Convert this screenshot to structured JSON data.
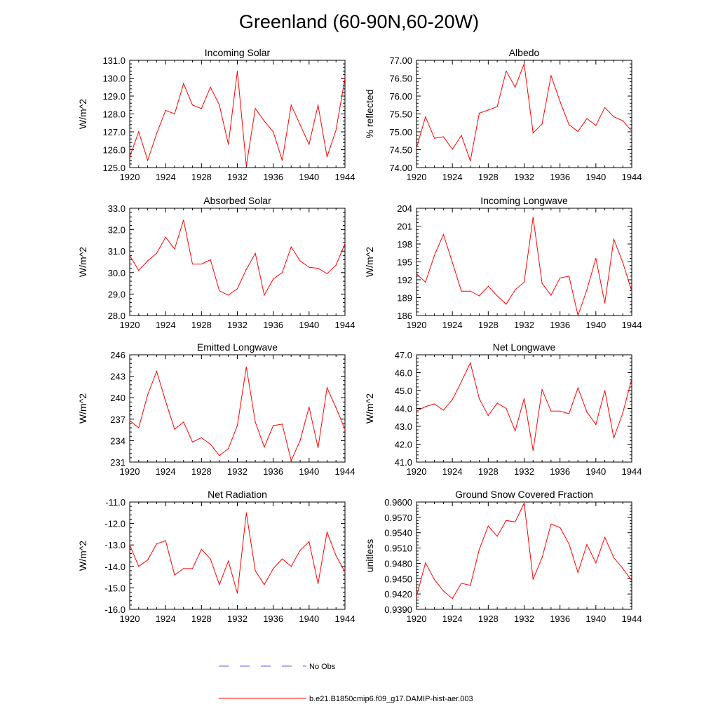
{
  "page": {
    "title": "Greenland (60-90N,60-20W)"
  },
  "legend": {
    "items": [
      {
        "label": "No Obs",
        "color": "#5b5bd6",
        "style": "dashed"
      },
      {
        "label": "b.e21.B1850cmip6.f09_g17.DAMIP-hist-aer.003",
        "color": "#ff0000",
        "style": "solid"
      }
    ]
  },
  "chart_data": [
    {
      "type": "line",
      "title": "Incoming Solar",
      "xlabel": "",
      "ylabel": "W/m^2",
      "xlim": [
        1920,
        1944
      ],
      "ylim": [
        125.0,
        131.0
      ],
      "xticks": [
        1920,
        1924,
        1928,
        1932,
        1936,
        1940,
        1944
      ],
      "yticks": [
        125.0,
        126.0,
        127.0,
        128.0,
        129.0,
        130.0,
        131.0
      ],
      "ytick_labels": [
        "125.0",
        "126.0",
        "127.0",
        "128.0",
        "129.0",
        "130.0",
        "131.0"
      ],
      "series": [
        {
          "name": "b.e21.B1850cmip6.f09_g17.DAMIP-hist-aer.003",
          "x": [
            1920,
            1921,
            1922,
            1923,
            1924,
            1925,
            1926,
            1927,
            1928,
            1929,
            1930,
            1931,
            1932,
            1933,
            1934,
            1935,
            1936,
            1937,
            1938,
            1939,
            1940,
            1941,
            1942,
            1943,
            1944
          ],
          "y": [
            125.6,
            127.0,
            125.4,
            126.9,
            128.2,
            128.0,
            129.7,
            128.5,
            128.3,
            129.5,
            128.5,
            126.3,
            130.4,
            125.1,
            128.3,
            127.6,
            127.0,
            125.4,
            128.5,
            127.4,
            126.3,
            128.5,
            125.6,
            127.1,
            130.0
          ]
        }
      ]
    },
    {
      "type": "line",
      "title": "Albedo",
      "xlabel": "",
      "ylabel": "% reflected",
      "xlim": [
        1920,
        1944
      ],
      "ylim": [
        74.0,
        77.0
      ],
      "xticks": [
        1920,
        1924,
        1928,
        1932,
        1936,
        1940,
        1944
      ],
      "yticks": [
        74.0,
        74.5,
        75.0,
        75.5,
        76.0,
        76.5,
        77.0
      ],
      "ytick_labels": [
        "74.00",
        "74.50",
        "75.00",
        "75.50",
        "76.00",
        "76.50",
        "77.00"
      ],
      "series": [
        {
          "name": "b.e21.B1850cmip6.f09_g17.DAMIP-hist-aer.003",
          "x": [
            1920,
            1921,
            1922,
            1923,
            1924,
            1925,
            1926,
            1927,
            1928,
            1929,
            1930,
            1931,
            1932,
            1933,
            1934,
            1935,
            1936,
            1937,
            1938,
            1939,
            1940,
            1941,
            1942,
            1943,
            1944
          ],
          "y": [
            74.55,
            75.42,
            74.82,
            74.86,
            74.51,
            74.9,
            74.19,
            75.52,
            75.61,
            75.7,
            76.7,
            76.25,
            76.9,
            74.97,
            75.22,
            76.57,
            75.85,
            75.2,
            75.01,
            75.37,
            75.18,
            75.68,
            75.42,
            75.31,
            75.02
          ]
        }
      ]
    },
    {
      "type": "line",
      "title": "Absorbed Solar",
      "xlabel": "",
      "ylabel": "W/m^2",
      "xlim": [
        1920,
        1944
      ],
      "ylim": [
        28.0,
        33.0
      ],
      "xticks": [
        1920,
        1924,
        1928,
        1932,
        1936,
        1940,
        1944
      ],
      "yticks": [
        28.0,
        29.0,
        30.0,
        31.0,
        32.0,
        33.0
      ],
      "ytick_labels": [
        "28.0",
        "29.0",
        "30.0",
        "31.0",
        "32.0",
        "33.0"
      ],
      "series": [
        {
          "name": "b.e21.B1850cmip6.f09_g17.DAMIP-hist-aer.003",
          "x": [
            1920,
            1921,
            1922,
            1923,
            1924,
            1925,
            1926,
            1927,
            1928,
            1929,
            1930,
            1931,
            1932,
            1933,
            1934,
            1935,
            1936,
            1937,
            1938,
            1939,
            1940,
            1941,
            1942,
            1943,
            1944
          ],
          "y": [
            30.8,
            30.1,
            30.55,
            30.9,
            31.65,
            31.1,
            32.45,
            30.4,
            30.4,
            30.6,
            29.15,
            28.95,
            29.25,
            30.15,
            30.9,
            28.95,
            29.7,
            30.0,
            31.2,
            30.55,
            30.25,
            30.2,
            29.95,
            30.35,
            31.35
          ]
        }
      ]
    },
    {
      "type": "line",
      "title": "Incoming Longwave",
      "xlabel": "",
      "ylabel": "W/m^2",
      "xlim": [
        1920,
        1944
      ],
      "ylim": [
        186,
        204
      ],
      "xticks": [
        1920,
        1924,
        1928,
        1932,
        1936,
        1940,
        1944
      ],
      "yticks": [
        186,
        189,
        192,
        195,
        198,
        201,
        204
      ],
      "ytick_labels": [
        "186",
        "189",
        "192",
        "195",
        "198",
        "201",
        "204"
      ],
      "series": [
        {
          "name": "b.e21.B1850cmip6.f09_g17.DAMIP-hist-aer.003",
          "x": [
            1920,
            1921,
            1922,
            1923,
            1924,
            1925,
            1926,
            1927,
            1928,
            1929,
            1930,
            1931,
            1932,
            1933,
            1934,
            1935,
            1936,
            1937,
            1938,
            1939,
            1940,
            1941,
            1942,
            1943,
            1944
          ],
          "y": [
            193.0,
            191.6,
            196.1,
            199.6,
            194.9,
            190.1,
            190.1,
            189.3,
            190.9,
            189.3,
            187.9,
            190.3,
            191.6,
            202.5,
            191.4,
            189.4,
            192.3,
            192.6,
            186.0,
            190.3,
            195.6,
            188.1,
            198.8,
            194.9,
            190.1
          ]
        }
      ]
    },
    {
      "type": "line",
      "title": "Emitted Longwave",
      "xlabel": "",
      "ylabel": "W/m^2",
      "xlim": [
        1920,
        1944
      ],
      "ylim": [
        231,
        246
      ],
      "xticks": [
        1920,
        1924,
        1928,
        1932,
        1936,
        1940,
        1944
      ],
      "yticks": [
        231,
        234,
        237,
        240,
        243,
        246
      ],
      "ytick_labels": [
        "231",
        "234",
        "237",
        "240",
        "243",
        "246"
      ],
      "series": [
        {
          "name": "b.e21.B1850cmip6.f09_g17.DAMIP-hist-aer.003",
          "x": [
            1920,
            1921,
            1922,
            1923,
            1924,
            1925,
            1926,
            1927,
            1928,
            1929,
            1930,
            1931,
            1932,
            1933,
            1934,
            1935,
            1936,
            1937,
            1938,
            1939,
            1940,
            1941,
            1942,
            1943,
            1944
          ],
          "y": [
            236.8,
            235.8,
            240.4,
            243.7,
            239.5,
            235.6,
            236.6,
            233.8,
            234.4,
            233.5,
            231.9,
            232.9,
            236.1,
            244.3,
            236.6,
            233.1,
            236.1,
            236.3,
            231.2,
            234.0,
            238.7,
            233.0,
            241.4,
            238.6,
            235.6
          ]
        }
      ]
    },
    {
      "type": "line",
      "title": "Net Longwave",
      "xlabel": "",
      "ylabel": "W/m^2",
      "xlim": [
        1920,
        1944
      ],
      "ylim": [
        41.0,
        47.0
      ],
      "xticks": [
        1920,
        1924,
        1928,
        1932,
        1936,
        1940,
        1944
      ],
      "yticks": [
        41.0,
        42.0,
        43.0,
        44.0,
        45.0,
        46.0,
        47.0
      ],
      "ytick_labels": [
        "41.0",
        "42.0",
        "43.0",
        "44.0",
        "45.0",
        "46.0",
        "47.0"
      ],
      "series": [
        {
          "name": "b.e21.B1850cmip6.f09_g17.DAMIP-hist-aer.003",
          "x": [
            1920,
            1921,
            1922,
            1923,
            1924,
            1925,
            1926,
            1927,
            1928,
            1929,
            1930,
            1931,
            1932,
            1933,
            1934,
            1935,
            1936,
            1937,
            1938,
            1939,
            1940,
            1941,
            1942,
            1943,
            1944
          ],
          "y": [
            43.85,
            44.1,
            44.25,
            43.9,
            44.5,
            45.5,
            46.55,
            44.55,
            43.6,
            44.3,
            44.0,
            42.75,
            44.55,
            41.65,
            45.05,
            43.85,
            43.85,
            43.7,
            45.15,
            43.8,
            43.1,
            45.0,
            42.35,
            43.75,
            45.65
          ]
        }
      ]
    },
    {
      "type": "line",
      "title": "Net Radiation",
      "xlabel": "",
      "ylabel": "W/m^2",
      "xlim": [
        1920,
        1944
      ],
      "ylim": [
        -16.0,
        -11.0
      ],
      "xticks": [
        1920,
        1924,
        1928,
        1932,
        1936,
        1940,
        1944
      ],
      "yticks": [
        -16.0,
        -15.0,
        -14.0,
        -13.0,
        -12.0,
        -11.0
      ],
      "ytick_labels": [
        "-16.0",
        "-15.0",
        "-14.0",
        "-13.0",
        "-12.0",
        "-11.0"
      ],
      "series": [
        {
          "name": "b.e21.B1850cmip6.f09_g17.DAMIP-hist-aer.003",
          "x": [
            1920,
            1921,
            1922,
            1923,
            1924,
            1925,
            1926,
            1927,
            1928,
            1929,
            1930,
            1931,
            1932,
            1933,
            1934,
            1935,
            1936,
            1937,
            1938,
            1939,
            1940,
            1941,
            1942,
            1943,
            1944
          ],
          "y": [
            -13.0,
            -14.0,
            -13.7,
            -12.95,
            -12.8,
            -14.4,
            -14.1,
            -14.1,
            -13.2,
            -13.65,
            -14.85,
            -13.75,
            -15.25,
            -11.5,
            -14.2,
            -14.85,
            -14.1,
            -13.65,
            -14.0,
            -13.25,
            -12.85,
            -14.8,
            -12.4,
            -13.5,
            -14.25
          ]
        }
      ]
    },
    {
      "type": "line",
      "title": "Ground Snow Covered Fraction",
      "xlabel": "",
      "ylabel": "unitless",
      "xlim": [
        1920,
        1944
      ],
      "ylim": [
        0.939,
        0.96
      ],
      "xticks": [
        1920,
        1924,
        1928,
        1932,
        1936,
        1940,
        1944
      ],
      "yticks": [
        0.939,
        0.942,
        0.945,
        0.948,
        0.951,
        0.954,
        0.957,
        0.96
      ],
      "ytick_labels": [
        "0.9390",
        "0.9420",
        "0.9450",
        "0.9480",
        "0.9510",
        "0.9540",
        "0.9570",
        "0.9600"
      ],
      "series": [
        {
          "name": "b.e21.B1850cmip6.f09_g17.DAMIP-hist-aer.003",
          "x": [
            1920,
            1921,
            1922,
            1923,
            1924,
            1925,
            1926,
            1927,
            1928,
            1929,
            1930,
            1931,
            1932,
            1933,
            1934,
            1935,
            1936,
            1937,
            1938,
            1939,
            1940,
            1941,
            1942,
            1943,
            1944
          ],
          "y": [
            0.9415,
            0.9481,
            0.9448,
            0.9426,
            0.9411,
            0.9441,
            0.9437,
            0.9507,
            0.9553,
            0.9533,
            0.9564,
            0.9561,
            0.9598,
            0.9449,
            0.9491,
            0.9557,
            0.955,
            0.9518,
            0.9462,
            0.9517,
            0.9481,
            0.9531,
            0.9491,
            0.947,
            0.9446
          ]
        }
      ]
    }
  ]
}
